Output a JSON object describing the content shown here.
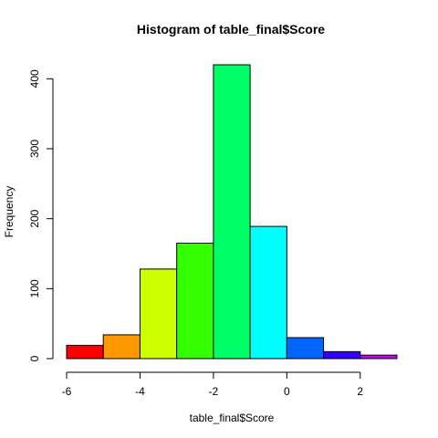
{
  "chart_data": {
    "type": "bar",
    "title": "Histogram of table_final$Score",
    "xlabel": "table_final$Score",
    "ylabel": "Frequency",
    "bin_edges": [
      -6,
      -5,
      -4,
      -3,
      -2,
      -1,
      0,
      1,
      2,
      3
    ],
    "values": [
      19,
      34,
      128,
      165,
      420,
      189,
      30,
      10,
      5
    ],
    "colors": [
      "#FF0000",
      "#FF9900",
      "#CCFF00",
      "#33FF00",
      "#00FF66",
      "#00FFFF",
      "#0066FF",
      "#3300FF",
      "#CC00FF"
    ],
    "x_ticks": [
      -6,
      -4,
      -2,
      0,
      2
    ],
    "y_ticks": [
      0,
      100,
      200,
      300,
      400
    ],
    "xlim": [
      -6,
      3
    ],
    "ylim": [
      0,
      420
    ],
    "grid": false
  }
}
